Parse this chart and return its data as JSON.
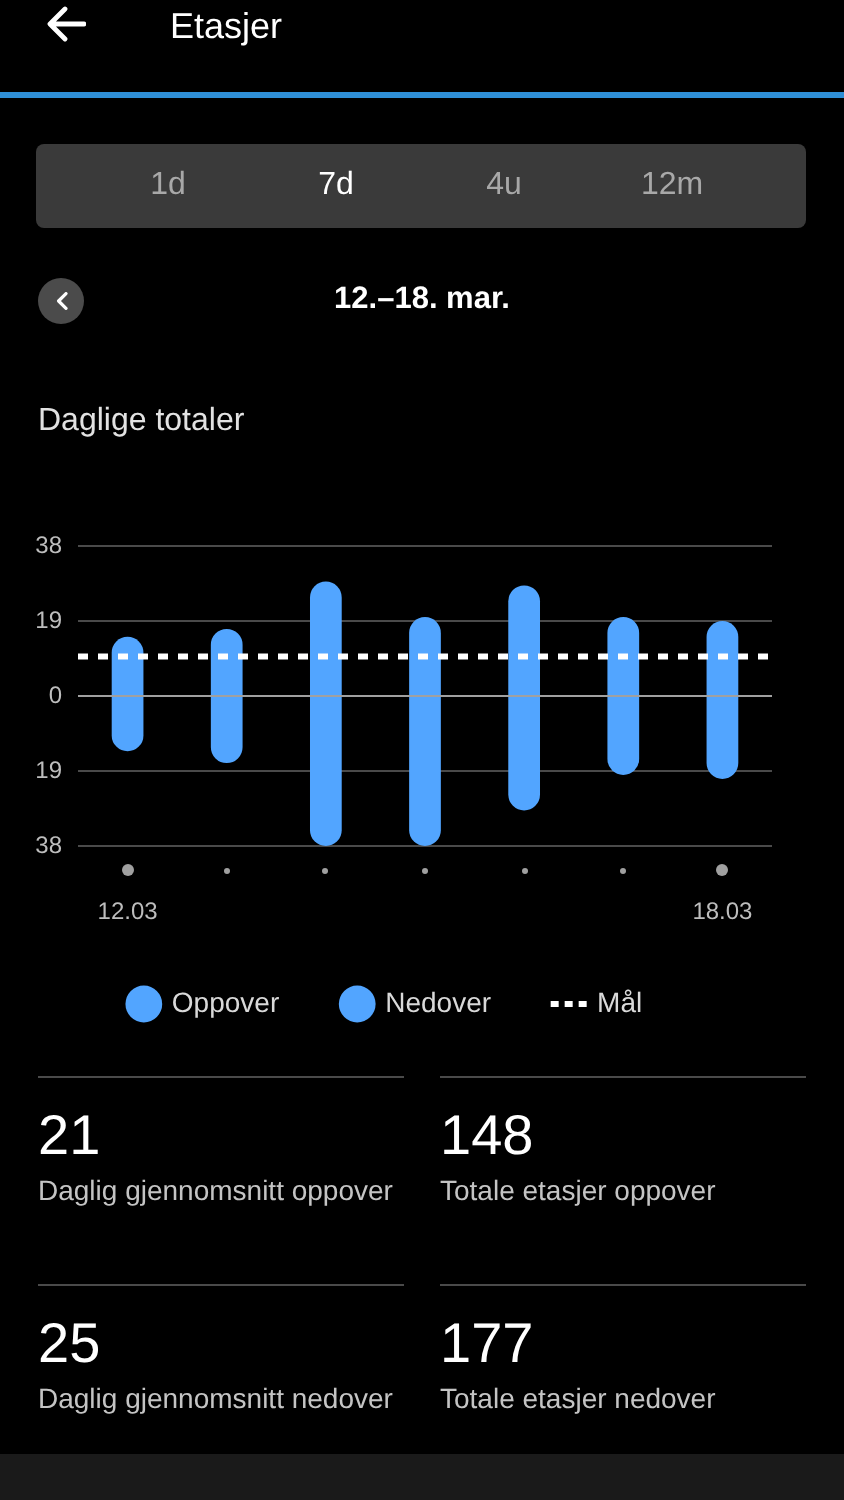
{
  "chart_data": [
    {
      "type": "bar",
      "title": "Daglige totaler",
      "subtitle": "12.–18. mar.",
      "annotations": [
        "Etasjer",
        "1d",
        "7d",
        "4u",
        "12m"
      ],
      "categories": [
        "12.03",
        null,
        null,
        null,
        null,
        null,
        "18.03"
      ],
      "series": [
        {
          "name": "Oppover",
          "color": "#52a5ff",
          "values": [
            15,
            17,
            29,
            20,
            28,
            20,
            19
          ]
        },
        {
          "name": "Nedover",
          "color": "#52a5ff",
          "values": [
            -14,
            -17,
            -38,
            -38,
            -29,
            -20,
            -21
          ]
        }
      ],
      "stacked": true,
      "ylim": [
        -38,
        38
      ],
      "yticks": [
        {
          "value": -38,
          "label": "38"
        },
        {
          "value": -19,
          "label": "19"
        },
        0,
        19,
        38
      ],
      "grid": "y",
      "legend": "bottom",
      "ref_lines": [
        {
          "axis": "y",
          "value": 10,
          "label": "Mål",
          "color": "#ffffff",
          "line_style": "dashed"
        }
      ]
    },
    {
      "type": "other",
      "annotations": [
        "21",
        "Daglig gjennomsnitt oppover",
        "148",
        "Totale etasjer oppover",
        "25",
        "Daglig gjennomsnitt nedover",
        "177",
        "Totale etasjer nedover"
      ]
    }
  ]
}
